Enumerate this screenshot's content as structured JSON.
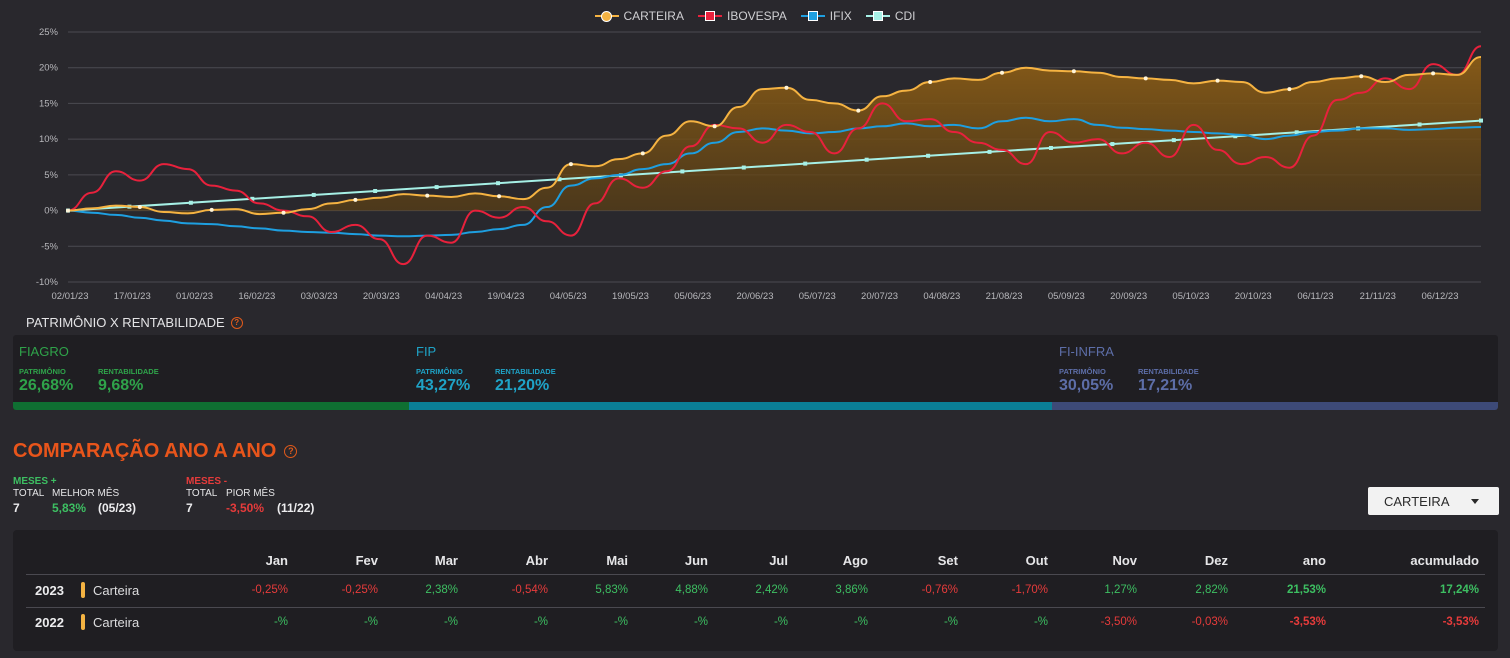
{
  "chart_data": {
    "type": "line",
    "legend": [
      "CARTEIRA",
      "IBOVESPA",
      "IFIX",
      "CDI"
    ],
    "x_tick_labels": [
      "02/01/23",
      "17/01/23",
      "01/02/23",
      "16/02/23",
      "03/03/23",
      "20/03/23",
      "04/04/23",
      "19/04/23",
      "04/05/23",
      "19/05/23",
      "05/06/23",
      "20/06/23",
      "05/07/23",
      "20/07/23",
      "04/08/23",
      "21/08/23",
      "05/09/23",
      "20/09/23",
      "05/10/23",
      "20/10/23",
      "06/11/23",
      "21/11/23",
      "06/12/23"
    ],
    "y_tick_labels": [
      "25%",
      "20%",
      "15%",
      "10%",
      "5%",
      "0%",
      "-5%",
      "-10%"
    ],
    "ylim": [
      -10,
      25
    ],
    "grid": true,
    "series": [
      {
        "name": "CARTEIRA",
        "color": "#f5b342",
        "fill": true,
        "values": [
          0,
          0.3,
          0.7,
          0.5,
          -0.2,
          -0.4,
          0.1,
          0.2,
          -0.5,
          -0.3,
          0.2,
          1.0,
          1.5,
          1.8,
          2.3,
          2.1,
          1.9,
          2.4,
          2.0,
          1.6,
          3.2,
          6.5,
          6.2,
          7.2,
          8.0,
          10.5,
          12.5,
          11.8,
          14.5,
          17.0,
          17.2,
          15.5,
          15.0,
          14.0,
          16.0,
          16.8,
          18.0,
          18.5,
          18.3,
          19.3,
          20.0,
          19.6,
          19.5,
          19.3,
          18.7,
          18.5,
          18.3,
          17.8,
          18.2,
          18.0,
          16.5,
          17.0,
          18.0,
          18.5,
          18.8,
          18.0,
          19.0,
          19.2,
          19.0,
          21.5
        ]
      },
      {
        "name": "IBOVESPA",
        "color": "#e8213c",
        "fill": false,
        "values": [
          0,
          2.5,
          5.5,
          4.2,
          6.5,
          5.8,
          3.5,
          2.8,
          1.0,
          0,
          -0.8,
          -3.0,
          -2.0,
          -4.0,
          -7.5,
          -3.5,
          -4.5,
          0,
          -1.0,
          0.5,
          -1.5,
          -3.5,
          1.0,
          4.5,
          3.2,
          5.5,
          9.0,
          12.0,
          11.5,
          9.5,
          12.0,
          11.0,
          8.0,
          11.5,
          15.0,
          12.5,
          12.8,
          11.0,
          9.5,
          8.5,
          6.5,
          11.0,
          9.5,
          10.0,
          8.0,
          9.5,
          7.5,
          12.0,
          8.5,
          6.5,
          7.5,
          6.0,
          10.5,
          15.5,
          16.5,
          18.5,
          17.0,
          20.5,
          19.0,
          23.0
        ]
      },
      {
        "name": "IFIX",
        "color": "#1e9fe0",
        "fill": false,
        "values": [
          0,
          -0.3,
          -0.6,
          -1.0,
          -1.4,
          -1.8,
          -1.9,
          -2.2,
          -2.5,
          -2.8,
          -3.0,
          -3.1,
          -3.3,
          -3.5,
          -3.6,
          -3.5,
          -3.4,
          -3.0,
          -2.6,
          -2.0,
          0.5,
          3.5,
          4.5,
          5.0,
          5.8,
          6.5,
          8.0,
          9.5,
          11.0,
          11.5,
          11.2,
          10.8,
          11.0,
          11.5,
          11.8,
          12.2,
          11.8,
          12.0,
          11.5,
          12.5,
          13.0,
          12.5,
          12.8,
          12.0,
          11.6,
          11.4,
          11.2,
          11.0,
          10.8,
          10.6,
          10.0,
          10.5,
          11.0,
          11.2,
          11.5,
          11.5,
          11.3,
          11.4,
          11.6,
          11.7
        ]
      },
      {
        "name": "CDI",
        "color": "#a6f0e6",
        "fill": false,
        "values": [
          0,
          12.6
        ]
      }
    ]
  },
  "patrimonio": {
    "title": "PATRIMÔNIO X RENTABILIDADE",
    "label_patrimonio": "PATRIMÔNIO",
    "label_rentabilidade": "RENTABILIDADE",
    "items": [
      {
        "name": "FIAGRO",
        "patrimonio": "26,68%",
        "rentabilidade": "9,68%",
        "share": 26.68,
        "color": "#0f6f32",
        "text_color": "#2fa34a"
      },
      {
        "name": "FIP",
        "patrimonio": "43,27%",
        "rentabilidade": "21,20%",
        "share": 43.27,
        "color": "#0a7f96",
        "text_color": "#1fa3c7"
      },
      {
        "name": "FI-INFRA",
        "patrimonio": "30,05%",
        "rentabilidade": "17,21%",
        "share": 30.05,
        "color": "#3d4a78",
        "text_color": "#5d6ea8"
      }
    ]
  },
  "comparacao": {
    "title": "COMPARAÇÃO ANO A ANO",
    "pos": {
      "head": "MESES +",
      "total_label": "TOTAL",
      "total": "7",
      "best_label": "MELHOR MÊS",
      "best_value": "5,83%",
      "best_month": "(05/23)"
    },
    "neg": {
      "head": "MESES -",
      "total_label": "TOTAL",
      "total": "7",
      "worst_label": "PIOR MÊS",
      "worst_value": "-3,50%",
      "worst_month": "(11/22)"
    },
    "select_value": "CARTEIRA",
    "headers": [
      "Jan",
      "Fev",
      "Mar",
      "Abr",
      "Mai",
      "Jun",
      "Jul",
      "Ago",
      "Set",
      "Out",
      "Nov",
      "Dez",
      "ano",
      "acumulado"
    ],
    "rows": [
      {
        "year": "2023",
        "portfolio": "Carteira",
        "values": [
          "-0,25%",
          "-0,25%",
          "2,38%",
          "-0,54%",
          "5,83%",
          "4,88%",
          "2,42%",
          "3,86%",
          "-0,76%",
          "-1,70%",
          "1,27%",
          "2,82%",
          "21,53%",
          "17,24%"
        ]
      },
      {
        "year": "2022",
        "portfolio": "Carteira",
        "values": [
          "-%",
          "-%",
          "-%",
          "-%",
          "-%",
          "-%",
          "-%",
          "-%",
          "-%",
          "-%",
          "-3,50%",
          "-0,03%",
          "-3,53%",
          "-3,53%"
        ]
      }
    ]
  }
}
